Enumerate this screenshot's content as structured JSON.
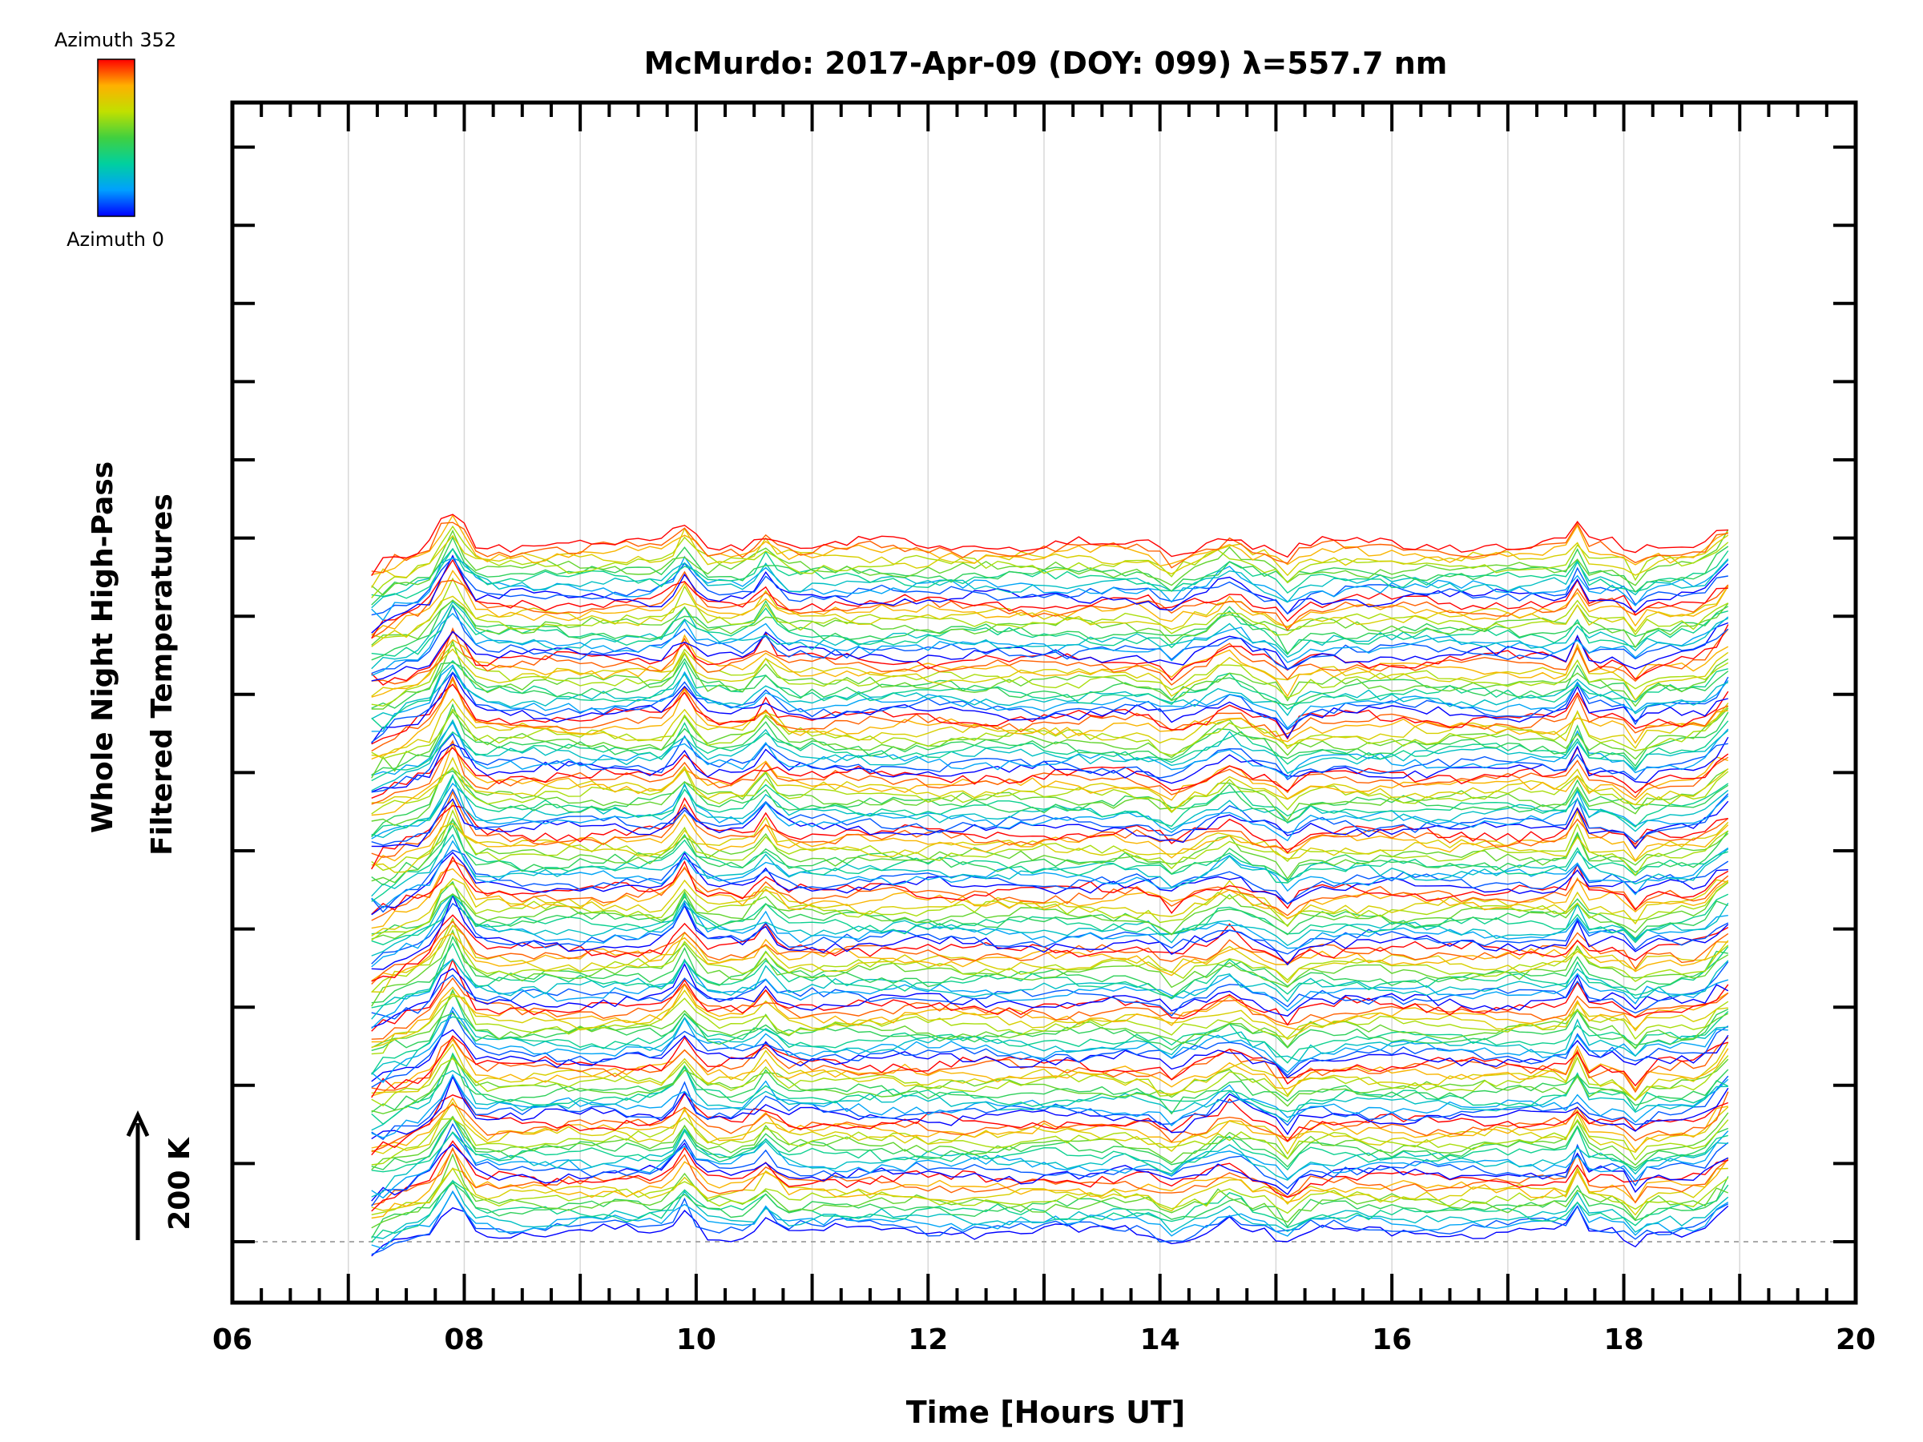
{
  "chart_data": {
    "type": "line",
    "title": "McMurdo: 2017-Apr-09 (DOY: 099) λ=557.7 nm",
    "xlabel": "Time [Hours UT]",
    "ylabel_line1": "Whole Night High-Pass",
    "ylabel_line2": "Filtered Temperatures",
    "scale_label": "200 K",
    "xlim": [
      6,
      20
    ],
    "x_ticks": [
      "06",
      "08",
      "10",
      "12",
      "14",
      "16",
      "18",
      "20"
    ],
    "time_range": [
      7.2,
      18.9
    ],
    "series_count": 144,
    "azimuth_range": [
      0,
      352
    ],
    "azimuth_step": 32,
    "colorbar": {
      "top_label": "Azimuth 352",
      "bottom_label": "Azimuth 0",
      "colors": [
        "#0000ff",
        "#00a0ff",
        "#00d0a0",
        "#40d040",
        "#c0e000",
        "#ffb000",
        "#ff0000"
      ]
    },
    "features": [
      {
        "time": 7.9,
        "description": "large positive peak"
      },
      {
        "time": 9.9,
        "description": "positive peak"
      },
      {
        "time": 10.6,
        "description": "positive peak"
      },
      {
        "time": 14.1,
        "description": "dip"
      },
      {
        "time": 14.6,
        "description": "positive peak"
      },
      {
        "time": 15.1,
        "description": "dip"
      },
      {
        "time": 17.6,
        "description": "sharp spike"
      },
      {
        "time": 18.1,
        "description": "dip"
      },
      {
        "time": 18.9,
        "description": "rise at end"
      }
    ]
  }
}
